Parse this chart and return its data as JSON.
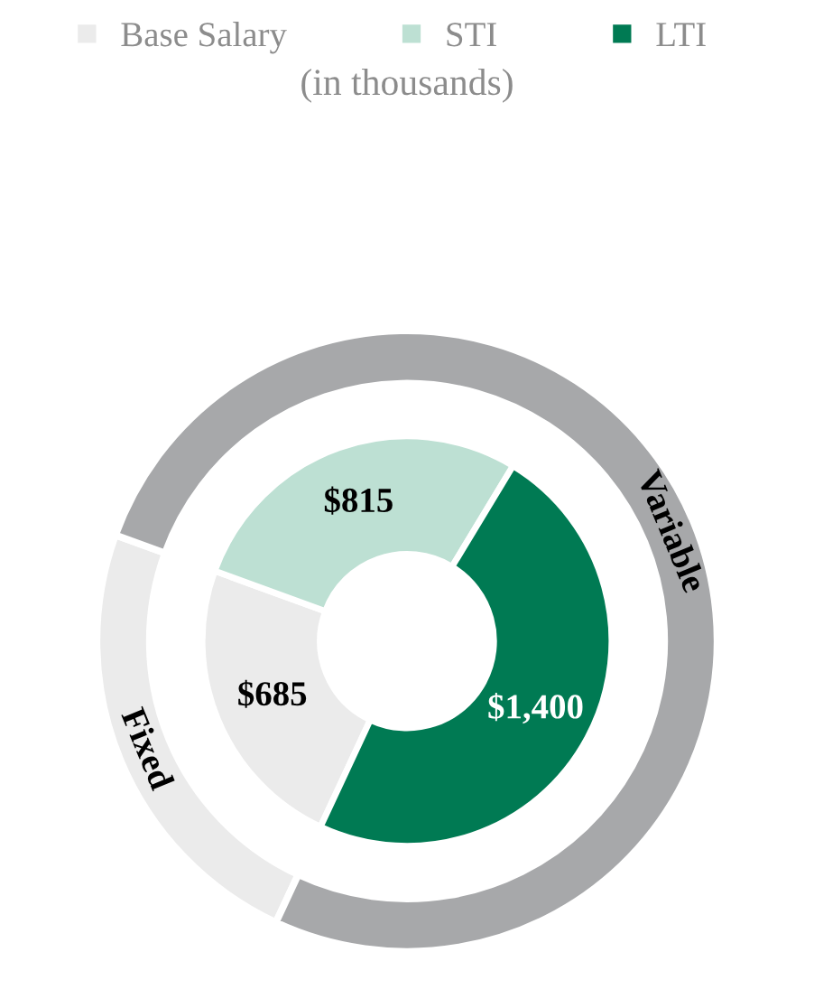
{
  "chart_data": {
    "type": "donut",
    "subtitle": "(in thousands)",
    "legend": "top",
    "categories": [
      "Base Salary",
      "STI",
      "LTI"
    ],
    "annotations": [
      "Fixed",
      "Variable"
    ],
    "series": [
      {
        "values": [
          685,
          815,
          1400
        ],
        "colors": [
          "#ebebeb",
          "#bde0d3",
          "#007a53"
        ],
        "value_labels": [
          "$685",
          "$815",
          "$1,400"
        ]
      },
      {
        "values": [
          23.6,
          76.4,
          null
        ],
        "colors": [
          "#ebebeb",
          "#a7a8aa",
          null
        ]
      }
    ]
  }
}
